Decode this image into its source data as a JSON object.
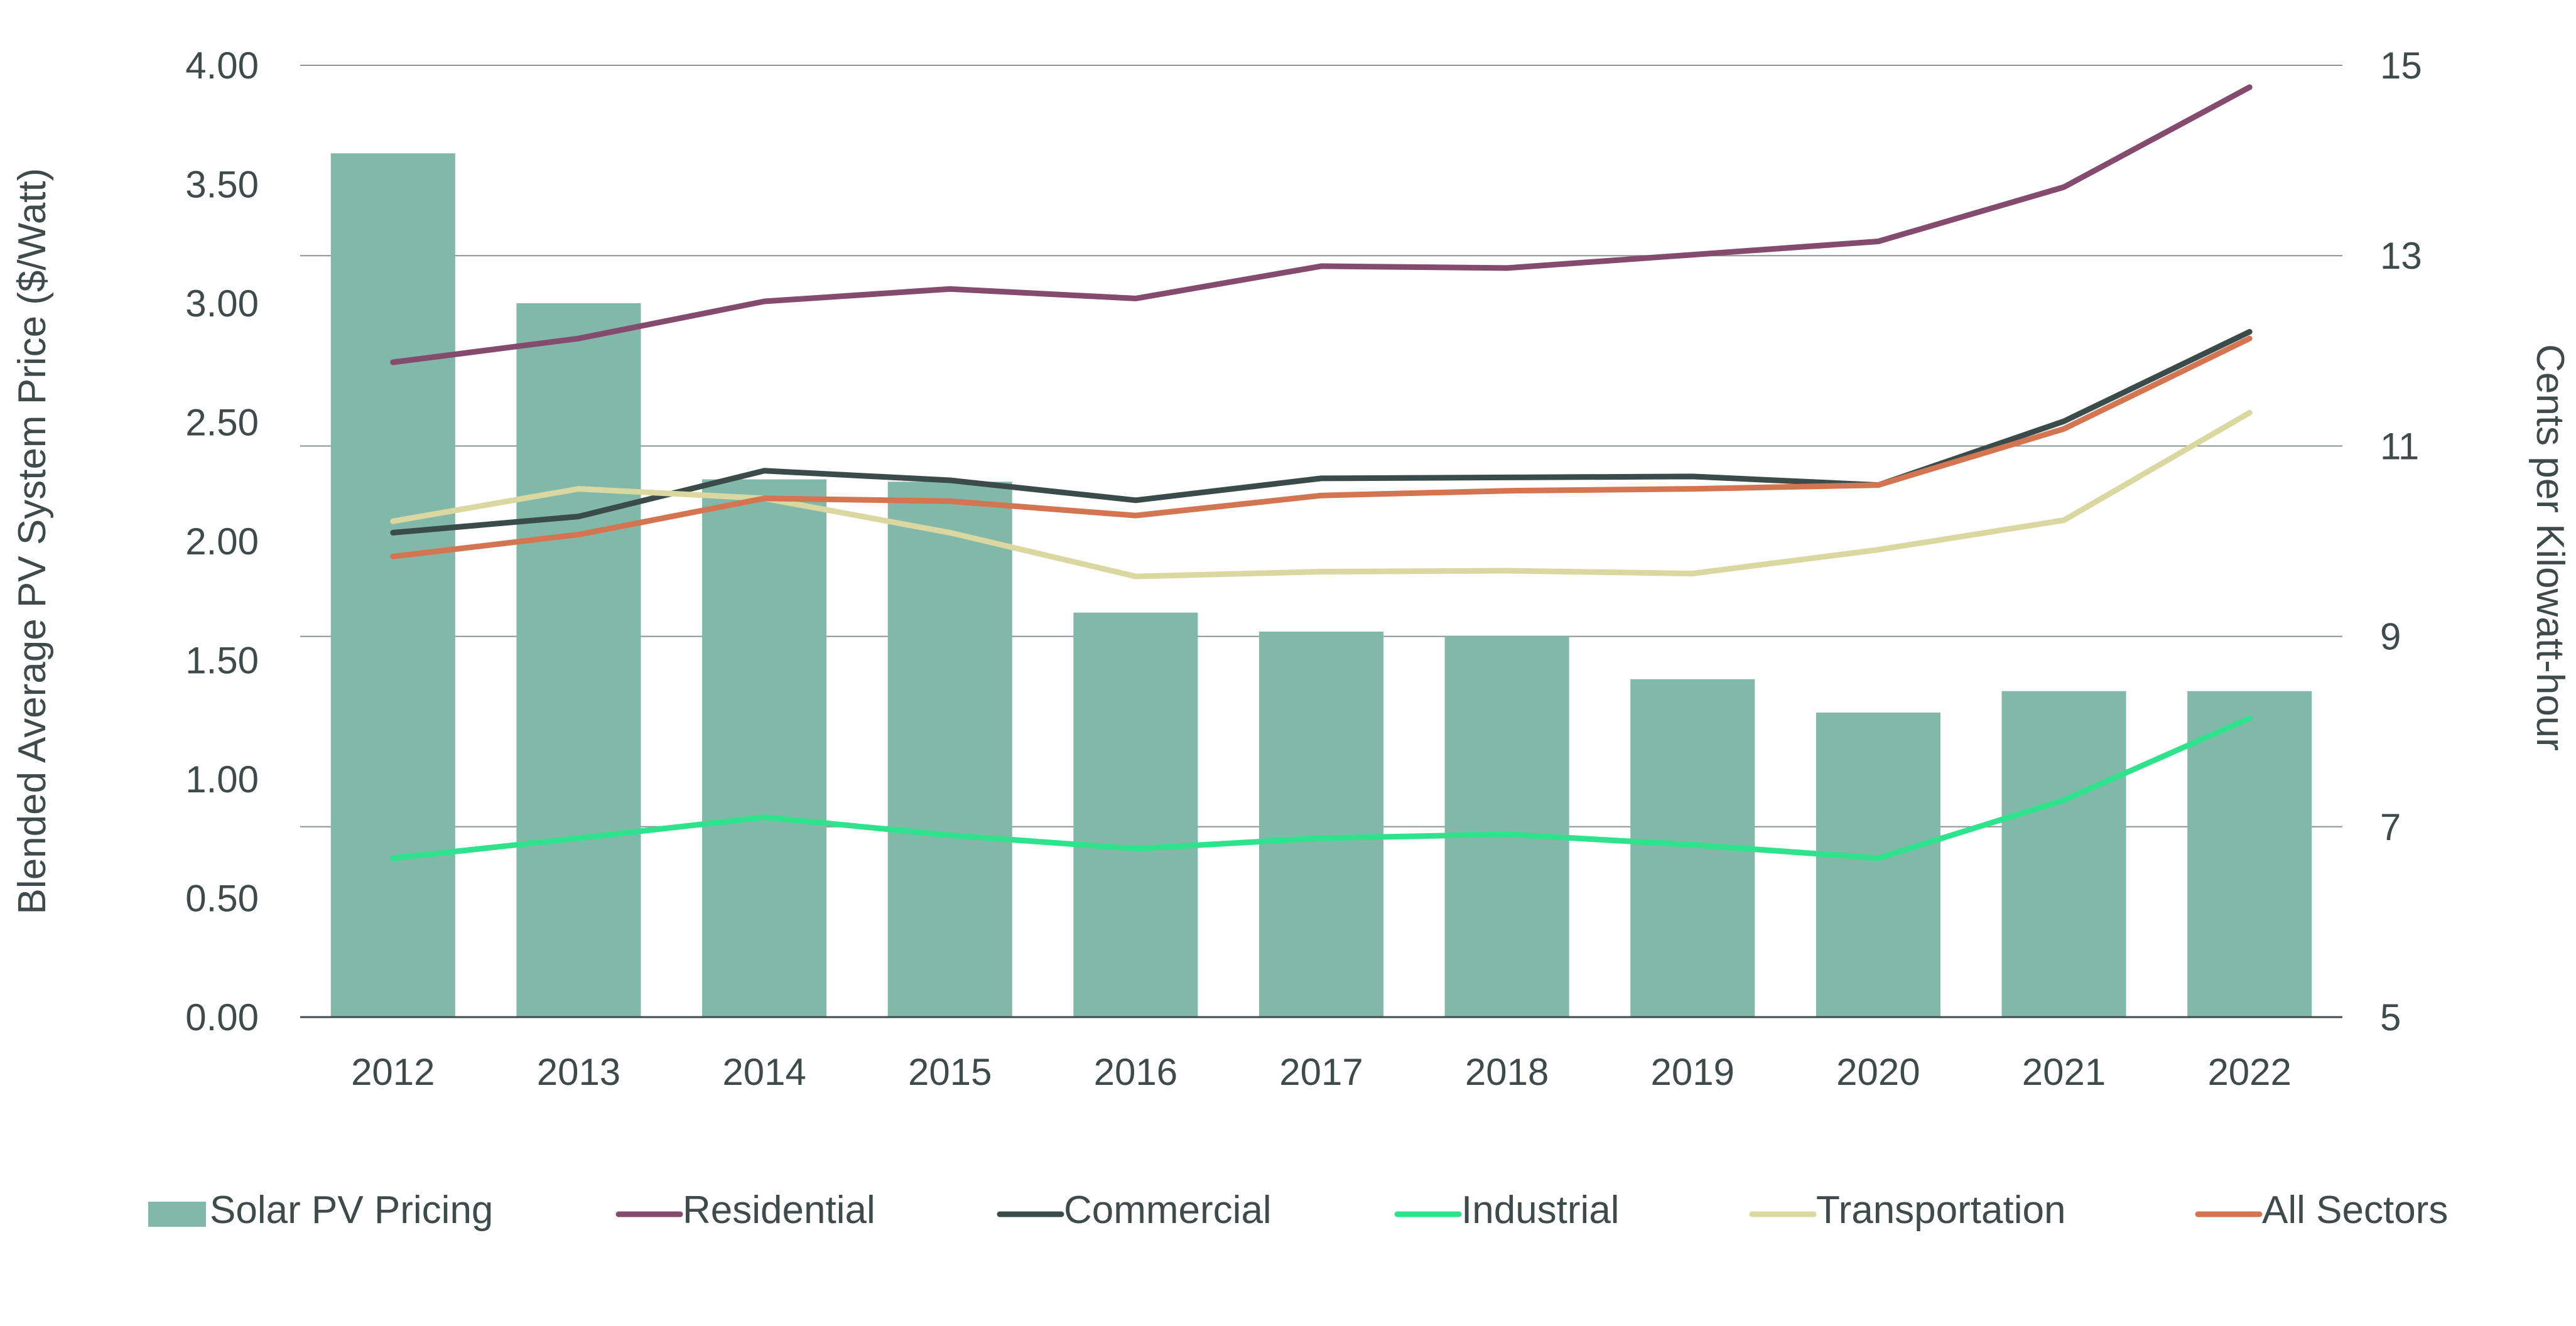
{
  "chart_data": {
    "type": "bar+line",
    "title": "",
    "categories": [
      "2012",
      "2013",
      "2014",
      "2015",
      "2016",
      "2017",
      "2018",
      "2019",
      "2020",
      "2021",
      "2022"
    ],
    "left_axis": {
      "label": "Blended Average PV System Price ($/Watt)",
      "min": 0,
      "max": 4,
      "ticks": [
        "0.00",
        "0.50",
        "1.00",
        "1.50",
        "2.00",
        "2.50",
        "3.00",
        "3.50",
        "4.00"
      ]
    },
    "right_axis": {
      "label": "Cents per Kilowatt-hour",
      "min": 5,
      "max": 15,
      "ticks": [
        "5",
        "7",
        "9",
        "11",
        "13",
        "15"
      ]
    },
    "grid": true,
    "legend_position": "bottom",
    "bar_series": {
      "name": "Solar PV Pricing",
      "axis": "left",
      "color": "#82b8aa",
      "values": [
        3.63,
        3.0,
        2.26,
        2.25,
        1.7,
        1.62,
        1.6,
        1.42,
        1.28,
        1.37,
        1.37
      ]
    },
    "line_series": [
      {
        "name": "Residential",
        "axis": "right",
        "color": "#854b6f",
        "values": [
          11.88,
          12.13,
          12.52,
          12.65,
          12.55,
          12.89,
          12.87,
          13.01,
          13.15,
          13.72,
          14.77
        ]
      },
      {
        "name": "Commercial",
        "axis": "right",
        "color": "#3b4b49",
        "values": [
          10.09,
          10.26,
          10.74,
          10.64,
          10.43,
          10.66,
          10.67,
          10.68,
          10.59,
          11.26,
          12.2
        ]
      },
      {
        "name": "Industrial",
        "axis": "right",
        "color": "#2fe38d",
        "values": [
          6.67,
          6.88,
          7.1,
          6.91,
          6.77,
          6.88,
          6.92,
          6.81,
          6.67,
          7.28,
          8.14
        ]
      },
      {
        "name": "Transportation",
        "axis": "right",
        "color": "#dbd7a0",
        "values": [
          10.21,
          10.55,
          10.45,
          10.09,
          9.63,
          9.68,
          9.69,
          9.66,
          9.91,
          10.22,
          11.35
        ]
      },
      {
        "name": "All Sectors",
        "axis": "right",
        "color": "#d47552",
        "values": [
          9.84,
          10.07,
          10.45,
          10.42,
          10.27,
          10.48,
          10.53,
          10.55,
          10.59,
          11.18,
          12.13
        ]
      }
    ]
  }
}
